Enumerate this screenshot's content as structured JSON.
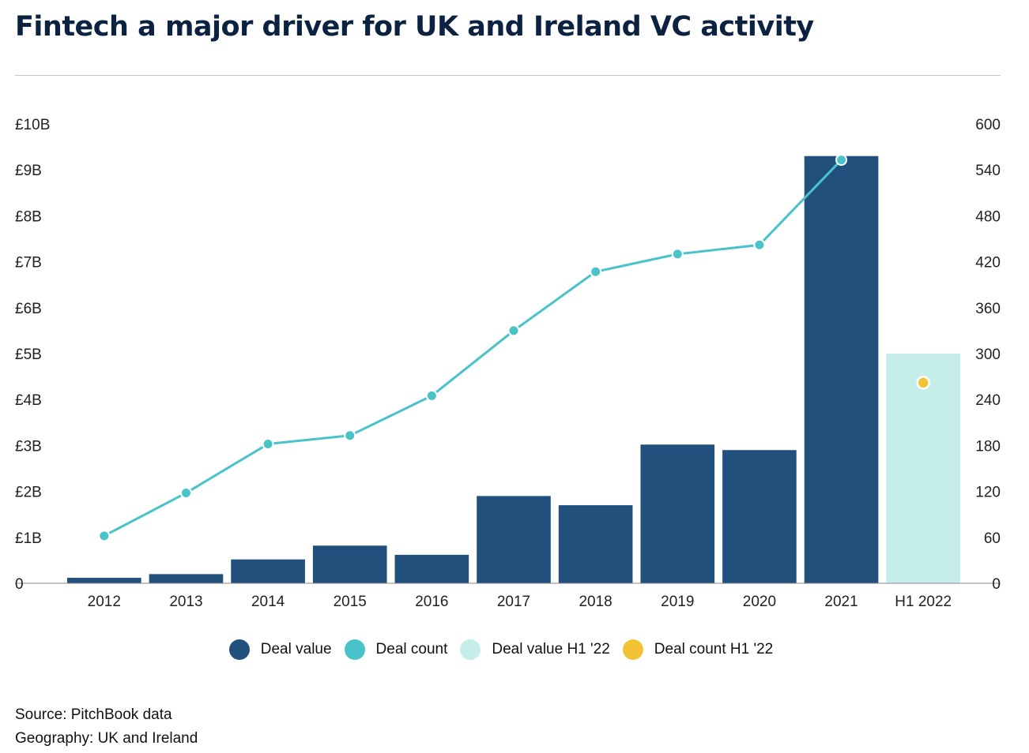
{
  "title": "Fintech a major driver for UK and Ireland VC activity",
  "source": "Source: PitchBook data",
  "geography": "Geography: UK and Ireland",
  "colors": {
    "deal_value": "#22507d",
    "deal_count": "#49c3c9",
    "deal_value_h1": "#c5ede9",
    "deal_count_h1": "#f2c335"
  },
  "legend": [
    {
      "label": "Deal value",
      "color": "#22507d"
    },
    {
      "label": "Deal count",
      "color": "#49c3c9"
    },
    {
      "label": "Deal value H1 '22",
      "color": "#c5ede9"
    },
    {
      "label": "Deal count H1 '22",
      "color": "#f2c335"
    }
  ],
  "chart_data": {
    "type": "bar",
    "title": "Fintech a major driver for UK and Ireland VC activity",
    "categories": [
      "2012",
      "2013",
      "2014",
      "2015",
      "2016",
      "2017",
      "2018",
      "2019",
      "2020",
      "2021",
      "H1 2022"
    ],
    "series": [
      {
        "name": "Deal value",
        "type": "bar",
        "axis": "left",
        "values": [
          0.12,
          0.2,
          0.52,
          0.82,
          0.62,
          1.9,
          1.7,
          3.02,
          2.9,
          9.3,
          null
        ]
      },
      {
        "name": "Deal count",
        "type": "line",
        "axis": "right",
        "values": [
          62,
          118,
          182,
          193,
          245,
          330,
          407,
          430,
          442,
          553,
          null
        ]
      },
      {
        "name": "Deal value H1 '22",
        "type": "bar",
        "axis": "left",
        "values": [
          null,
          null,
          null,
          null,
          null,
          null,
          null,
          null,
          null,
          null,
          5.0
        ]
      },
      {
        "name": "Deal count H1 '22",
        "type": "point",
        "axis": "right",
        "values": [
          null,
          null,
          null,
          null,
          null,
          null,
          null,
          null,
          null,
          null,
          262
        ]
      }
    ],
    "y_left": {
      "ticks": [
        "0",
        "£1B",
        "£2B",
        "£3B",
        "£4B",
        "£5B",
        "£6B",
        "£7B",
        "£8B",
        "£9B",
        "£10B"
      ],
      "range": [
        0,
        10
      ],
      "unit": "£B"
    },
    "y_right": {
      "ticks": [
        "0",
        "60",
        "120",
        "180",
        "240",
        "300",
        "360",
        "420",
        "480",
        "540",
        "600"
      ],
      "range": [
        0,
        600
      ]
    },
    "grid": false,
    "legend_position": "bottom"
  }
}
